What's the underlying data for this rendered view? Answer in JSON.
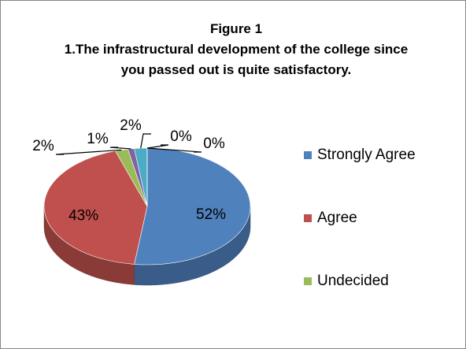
{
  "chart_data": {
    "type": "pie",
    "title": "Figure 1",
    "subtitle": "1.The infrastructural development of the college since you passed out is quite satisfactory.",
    "categories": [
      "Strongly Agree",
      "Agree",
      "Undecided",
      null,
      null,
      null,
      null
    ],
    "values": [
      52,
      43,
      2,
      1,
      2,
      0,
      0
    ],
    "value_labels": [
      "52%",
      "43%",
      "2%",
      "1%",
      "2%",
      "0%",
      "0%"
    ],
    "colors": [
      "#4f81bd",
      "#c0504d",
      "#9bbb59",
      "#8064a2",
      "#4bacc6",
      "#f79646",
      "#2c4d75"
    ],
    "legend": "right",
    "style": "3d"
  }
}
